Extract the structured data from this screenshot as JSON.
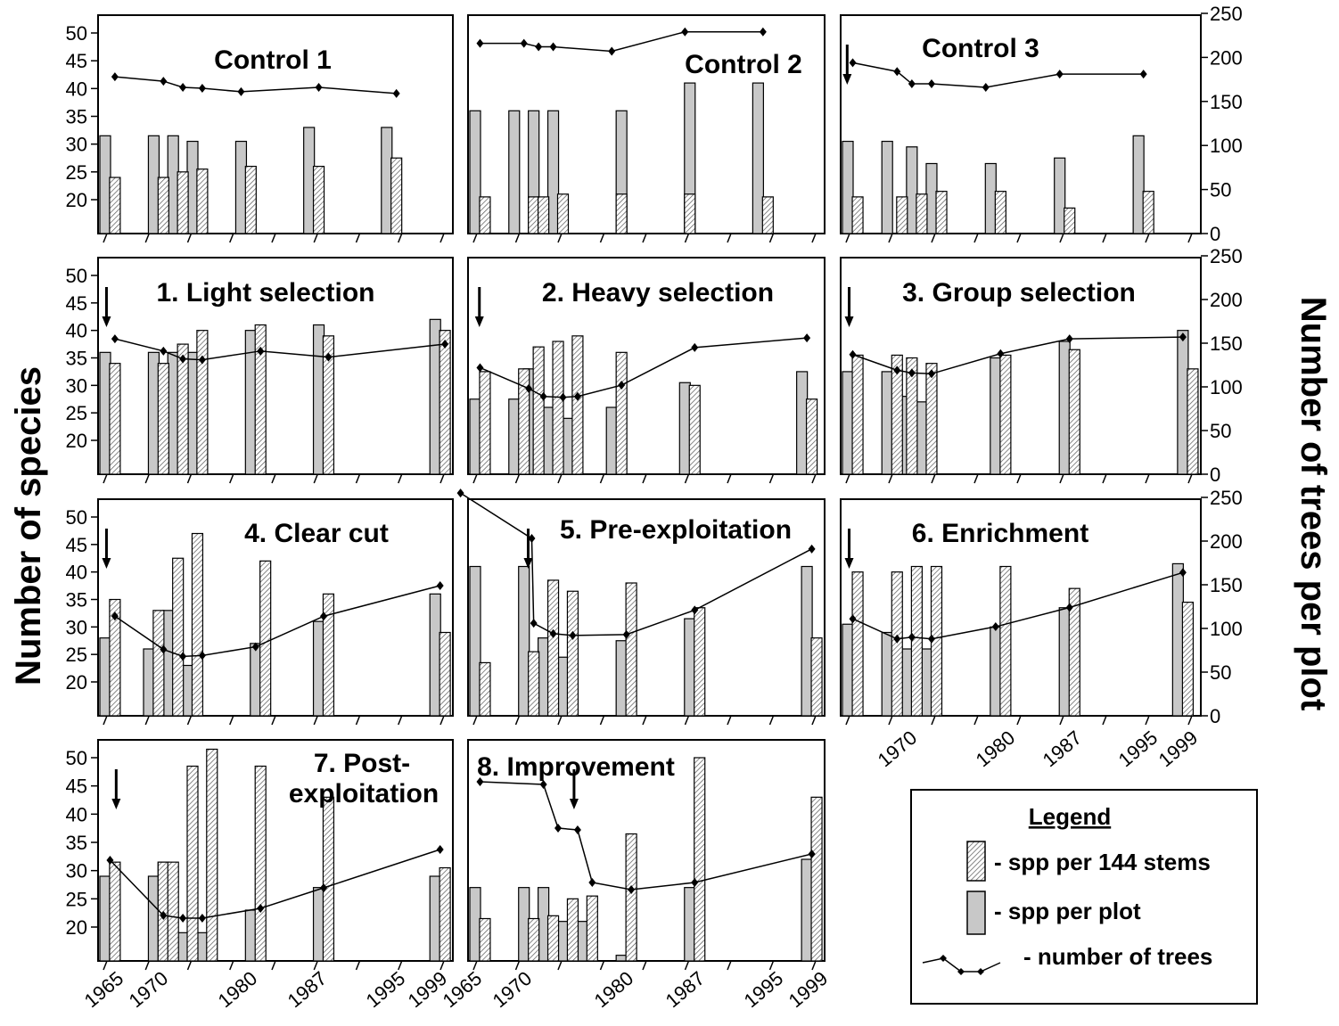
{
  "chart_data": [
    {
      "type": "bar",
      "title": "Control 1",
      "plot_x": [
        1965.0,
        1966.0,
        1970.0,
        1971.0,
        1972.0,
        1973.0,
        1974.0,
        1975.0,
        1979.0,
        1980.0,
        1986.0,
        1987.0,
        1994.0,
        1995.0
      ],
      "plot_v": [
        31.5,
        null,
        31.5,
        null,
        31.5,
        null,
        30.5,
        null,
        30.5,
        null,
        33,
        null,
        33,
        null
      ],
      "stem_x": [
        1966.0,
        1971.0,
        1973.0,
        1975.0,
        1980.0,
        1987.0,
        1995.0
      ],
      "stem_v": [
        24,
        24,
        25,
        25.5,
        26,
        26,
        27.5
      ],
      "trees_x": [
        1966.0,
        1971.0,
        1973.0,
        1975.0,
        1979.0,
        1987.0,
        1995.0
      ],
      "trees_v": [
        178,
        173,
        166,
        165,
        161,
        166,
        159
      ],
      "arrows": []
    },
    {
      "type": "bar",
      "title": "Control 2",
      "plot_x": [
        1965.0,
        1969.0,
        1971.0,
        1973.0,
        1980.0,
        1987.0,
        1994.0
      ],
      "plot_v": [
        36,
        36,
        36,
        36,
        36,
        41,
        41
      ],
      "stem_x": [
        1966.0,
        1971.0,
        1972.0,
        1974.0,
        1980.0,
        1987.0,
        1995.0
      ],
      "stem_v": [
        20.5,
        20.5,
        20.5,
        21,
        21,
        21,
        20.5
      ],
      "trees_x": [
        1965.5,
        1970.0,
        1971.5,
        1973.0,
        1979.0,
        1986.5,
        1994.5
      ],
      "trees_v": [
        216,
        216,
        212,
        212,
        207,
        229,
        229
      ],
      "arrows": []
    },
    {
      "type": "bar",
      "title": "Control 3",
      "plot_x": [
        1965.0,
        1969.0,
        1971.5,
        1973.5,
        1979.5,
        1986.5,
        1994.5
      ],
      "plot_v": [
        30.5,
        30.5,
        29.5,
        26.5,
        26.5,
        27.5,
        31.5
      ],
      "stem_x": [
        1966.0,
        1970.5,
        1972.5,
        1974.5,
        1980.5,
        1987.5,
        1995.5
      ],
      "stem_v": [
        20.5,
        20.5,
        21,
        21.5,
        21.5,
        18.5,
        21.5
      ],
      "trees_x": [
        1965.5,
        1970.0,
        1971.5,
        1973.5,
        1979.0,
        1986.5,
        1995.0
      ],
      "trees_v": [
        194,
        184,
        170,
        170,
        166,
        181,
        181
      ],
      "arrows": [
        1965.3
      ]
    },
    {
      "type": "bar",
      "title": "1. Light selection",
      "plot_x": [
        1965.0,
        1970.0,
        1972.0,
        1974.0,
        1980.0,
        1987.0,
        1999.0
      ],
      "plot_v": [
        36,
        36,
        36,
        36,
        40,
        41,
        42
      ],
      "stem_x": [
        1966.0,
        1971.0,
        1973.0,
        1975.0,
        1981.0,
        1988.0,
        2000.0
      ],
      "stem_v": [
        34,
        34,
        37.5,
        40,
        41,
        39,
        40
      ],
      "trees_x": [
        1966.0,
        1971.0,
        1973.0,
        1975.0,
        1981.0,
        1988.0,
        2000.0
      ],
      "trees_v": [
        155,
        141,
        132,
        131,
        141,
        134,
        149
      ],
      "arrows": [
        1965.5
      ]
    },
    {
      "type": "bar",
      "title": "2. Heavy selection",
      "plot_x": [
        1965.0,
        1969.0,
        1970.5,
        1972.5,
        1974.5,
        1979.0,
        1986.5,
        1998.5
      ],
      "plot_v": [
        27.5,
        27.5,
        33,
        26,
        24,
        26,
        30.5,
        32.5
      ],
      "stem_x": [
        1966.0,
        1970.0,
        1971.5,
        1973.5,
        1975.5,
        1980.0,
        1987.5,
        1999.5
      ],
      "stem_v": [
        32.5,
        33,
        37,
        38,
        39,
        36,
        30,
        27.5
      ],
      "trees_x": [
        1965.5,
        1970.5,
        1972.0,
        1974.0,
        1975.5,
        1980.0,
        1987.5,
        1999.0
      ],
      "trees_v": [
        122,
        98,
        89,
        88,
        89,
        102,
        145,
        156
      ],
      "arrows": [
        1965.8
      ]
    },
    {
      "type": "bar",
      "title": "3. Group selection",
      "plot_x": [
        1965.0,
        1969.0,
        1970.5,
        1972.5,
        1980.0,
        1987.0,
        1999.0
      ],
      "plot_v": [
        32.5,
        32.5,
        28,
        27,
        35,
        38,
        40
      ],
      "stem_x": [
        1966.0,
        1970.0,
        1971.5,
        1973.5,
        1981.0,
        1988.0,
        2000.0
      ],
      "stem_v": [
        35.5,
        35.5,
        35,
        34,
        35.5,
        36.5,
        33
      ],
      "trees_x": [
        1965.5,
        1970.0,
        1971.5,
        1973.5,
        1980.5,
        1987.5,
        1999.0
      ],
      "trees_v": [
        137,
        119,
        116,
        115,
        138,
        155,
        157
      ],
      "arrows": [
        1965.5
      ]
    },
    {
      "type": "bar",
      "title": "4. Clear cut",
      "plot_x": [
        1965.0,
        1969.5,
        1971.5,
        1973.5,
        1980.5,
        1987.0,
        1999.0
      ],
      "plot_v": [
        28,
        26,
        33,
        23,
        27,
        31,
        36
      ],
      "stem_x": [
        1966.0,
        1970.5,
        1972.5,
        1974.5,
        1981.5,
        1988.0,
        2000.0
      ],
      "stem_v": [
        35,
        33,
        42.5,
        47,
        42,
        36,
        29
      ],
      "trees_x": [
        1966.0,
        1971.0,
        1973.0,
        1975.0,
        1980.5,
        1987.5,
        1999.5
      ],
      "trees_v": [
        114,
        76,
        68,
        69,
        79,
        114,
        149
      ],
      "arrows": [
        1965.5
      ]
    },
    {
      "type": "bar",
      "title": "5. Pre-exploitation",
      "plot_x": [
        1965.0,
        1970.0,
        1972.0,
        1974.0,
        1980.0,
        1987.0,
        1999.0
      ],
      "plot_v": [
        41,
        41,
        28,
        24.5,
        27.5,
        31.5,
        41
      ],
      "stem_x": [
        1966.0,
        1971.0,
        1973.0,
        1975.0,
        1981.0,
        1988.0,
        2000.0
      ],
      "stem_v": [
        23.5,
        25.5,
        38.5,
        36.5,
        38,
        33.5,
        28
      ],
      "trees_x": [
        1963.5,
        1970.8,
        1971.0,
        1973.0,
        1975.0,
        1980.5,
        1987.5,
        1999.5
      ],
      "trees_v": [
        255,
        203,
        106,
        94,
        92,
        93,
        121,
        191
      ],
      "arrows": [
        1970.8
      ]
    },
    {
      "type": "bar",
      "title": "6. Enrichment",
      "plot_x": [
        1965.0,
        1969.0,
        1971.0,
        1973.0,
        1980.0,
        1987.0,
        1998.5
      ],
      "plot_v": [
        30.5,
        29,
        26,
        26,
        30,
        33.5,
        41.5
      ],
      "stem_x": [
        1966.0,
        1970.0,
        1972.0,
        1974.0,
        1981.0,
        1988.0,
        1999.5
      ],
      "stem_v": [
        40,
        40,
        41,
        41,
        41,
        37,
        34.5
      ],
      "trees_x": [
        1965.5,
        1970.0,
        1971.5,
        1973.5,
        1980.0,
        1987.5,
        1999.0
      ],
      "trees_v": [
        111,
        88,
        90,
        88,
        102,
        124,
        164
      ],
      "arrows": [
        1965.5
      ]
    },
    {
      "type": "bar",
      "title": "7. Post-exploitation",
      "plot_x": [
        1965.0,
        1970.0,
        1971.0,
        1973.0,
        1975.0,
        1980.0,
        1987.0,
        1999.0
      ],
      "plot_v": [
        29,
        29,
        31.5,
        19,
        19,
        23,
        27,
        29
      ],
      "stem_x": [
        1966.0,
        1971.0,
        1972.0,
        1974.0,
        1976.0,
        1981.0,
        1988.0,
        2000.0
      ],
      "stem_v": [
        31.5,
        31.5,
        31.5,
        48.5,
        51.5,
        48.5,
        43,
        30.5
      ],
      "trees_x": [
        1965.5,
        1971.0,
        1973.0,
        1975.0,
        1981.0,
        1987.5,
        1999.5
      ],
      "trees_v": [
        113,
        51,
        48,
        48,
        59,
        82,
        125
      ],
      "arrows": [
        1966.5
      ]
    },
    {
      "type": "bar",
      "title": "8. Improvement",
      "plot_x": [
        1965.0,
        1970.0,
        1972.0,
        1974.0,
        1976.0,
        1980.0,
        1987.0,
        1999.0
      ],
      "plot_v": [
        27,
        27,
        27,
        21,
        21,
        15,
        27,
        32
      ],
      "stem_x": [
        1966.0,
        1971.0,
        1973.0,
        1975.0,
        1977.0,
        1981.0,
        1988.0,
        2000.0
      ],
      "stem_v": [
        21.5,
        21.5,
        22,
        25,
        25.5,
        36.5,
        50,
        43
      ],
      "trees_x": [
        1965.5,
        1972.0,
        1973.5,
        1975.5,
        1977.0,
        1981.0,
        1987.5,
        1999.5
      ],
      "trees_v": [
        201,
        198,
        149,
        147,
        88,
        80,
        88,
        120
      ],
      "arrows": [
        1975.5
      ]
    }
  ],
  "ylabel_left": "Number of species",
  "ylabel_right": "Number of trees per plot",
  "left_ticks": [
    "50",
    "45",
    "40",
    "35",
    "30",
    "25",
    "20"
  ],
  "right_ticks": [
    "250",
    "200",
    "150",
    "100",
    "50",
    "0"
  ],
  "x_ticks": [
    "1965",
    "1970",
    "1980",
    "1987",
    "1995",
    "1999"
  ],
  "panel6_x_ticks": [
    "1970",
    "1980",
    "1987",
    "1995",
    "1999"
  ],
  "legend": {
    "title": "Legend",
    "items": [
      "- spp per 144 stems",
      "- spp per plot",
      "- number of trees"
    ]
  },
  "colors": {
    "plot_bar": "#c8c8c8",
    "stem_bar": "#ffffff",
    "hatch": "#555555",
    "line": "#000000"
  }
}
